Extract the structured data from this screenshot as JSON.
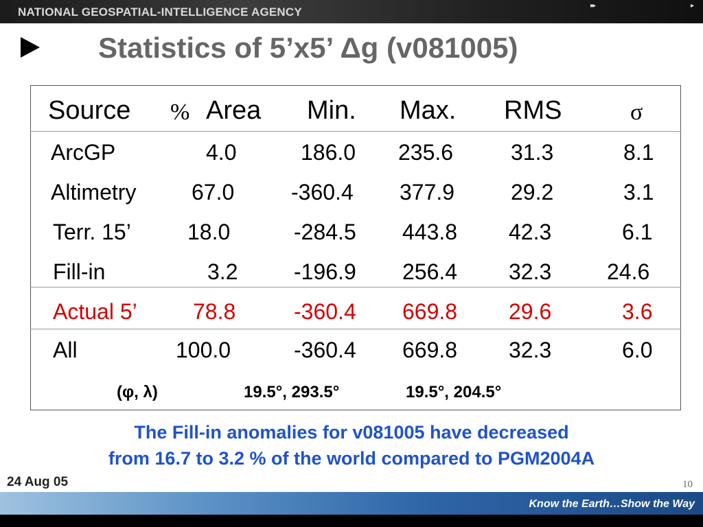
{
  "header": {
    "agency": "NATIONAL GEOSPATIAL-INTELLIGENCE AGENCY",
    "nav_left": "▸▸",
    "nav_right": "▸"
  },
  "slide": {
    "title": "Statistics of 5’x5’ Δg (v081005)"
  },
  "table": {
    "headers": {
      "source": "Source",
      "pct": "%",
      "area": "Area",
      "min": "Min.",
      "max": "Max.",
      "rms": "RMS",
      "sigma": "σ"
    },
    "rows": [
      {
        "source": "ArcGP",
        "area": "4.0",
        "min": "186.0",
        "max": "235.6",
        "rms": "31.3",
        "sigma": "8.1"
      },
      {
        "source": "Altimetry",
        "area": "67.0",
        "min": "-360.4",
        "max": "377.9",
        "rms": "29.2",
        "sigma": "3.1"
      },
      {
        "source": "Terr. 15’",
        "area": "18.0",
        "min": "-284.5",
        "max": "443.8",
        "rms": "42.3",
        "sigma": "6.1"
      },
      {
        "source": "Fill-in",
        "area": "3.2",
        "min": "-196.9",
        "max": "256.4",
        "rms": "32.3",
        "sigma": "24.6"
      },
      {
        "source": "Actual 5’",
        "area": "78.8",
        "min": "-360.4",
        "max": "669.8",
        "rms": "29.6",
        "sigma": "3.6"
      },
      {
        "source": "All",
        "area": "100.0",
        "min": "-360.4",
        "max": "669.8",
        "rms": "32.3",
        "sigma": "6.0"
      }
    ],
    "coords": {
      "label": "(φ, λ)",
      "min_location": "19.5°, 293.5°",
      "max_location": "19.5°, 204.5°"
    },
    "highlight_color": "#d40000"
  },
  "note": {
    "line1": "The Fill-in anomalies for v081005 have decreased",
    "line2": "from 16.7 to 3.2 % of the world compared to PGM2004A"
  },
  "footer": {
    "date": "24 Aug 05",
    "page": "10",
    "motto": "Know the Earth…Show the Way"
  }
}
